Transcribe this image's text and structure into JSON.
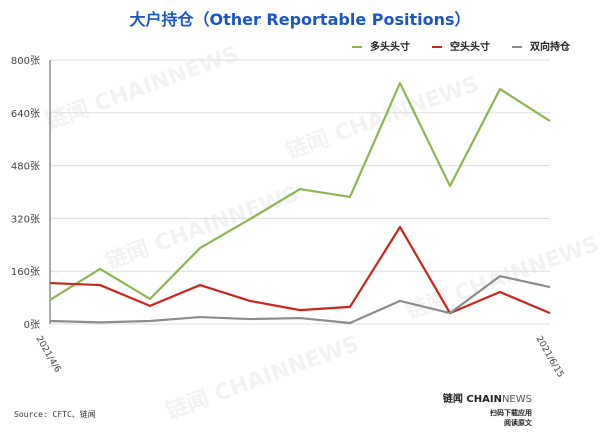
{
  "chart_data": {
    "type": "line",
    "title": "大户持仓（Other Reportable Positions）",
    "x": [
      "2021/4/6",
      "",
      "",
      "",
      "",
      "",
      "",
      "",
      "",
      "",
      "2021/6/15"
    ],
    "x_tick_labels": [
      "2021/4/6",
      "2021/6/15"
    ],
    "y_ticks": [
      "0张",
      "160张",
      "320张",
      "480张",
      "640张",
      "800张"
    ],
    "y_tick_values": [
      0,
      160,
      320,
      480,
      640,
      800
    ],
    "ylim": [
      0,
      800
    ],
    "legend_position": "top-right",
    "series": [
      {
        "name": "多头头寸",
        "color": "#8db552",
        "values": [
          73,
          167,
          76,
          230,
          318,
          409,
          385,
          730,
          418,
          712,
          615
        ]
      },
      {
        "name": "空头头寸",
        "color": "#c8261e",
        "values": [
          124,
          118,
          55,
          118,
          70,
          42,
          52,
          294,
          33,
          97,
          33
        ]
      },
      {
        "name": "双向持仓",
        "color": "#8c8c8c",
        "values": [
          9,
          5,
          9,
          21,
          15,
          18,
          3,
          70,
          33,
          145,
          112
        ]
      }
    ]
  },
  "footer": {
    "source": "Source: CFTC、链闻",
    "brand_a": "链闻 CHAIN",
    "brand_b": "NEWS",
    "line1": "扫码下载应用",
    "line2": "阅读原文"
  },
  "watermark": "链闻 CHAINNEWS"
}
